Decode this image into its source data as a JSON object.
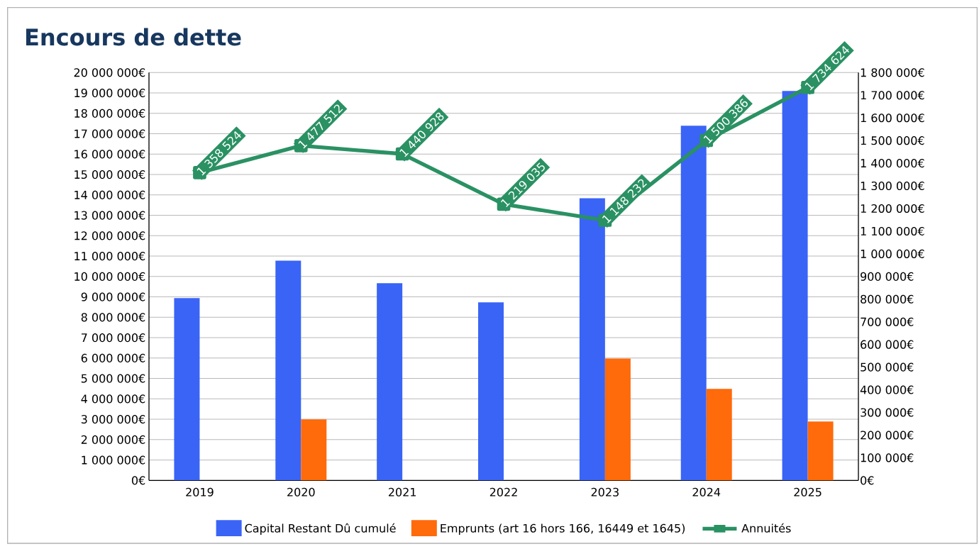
{
  "chart_data": {
    "type": "bar",
    "title": "Encours de dette",
    "categories": [
      "2019",
      "2020",
      "2021",
      "2022",
      "2023",
      "2024",
      "2025"
    ],
    "series": [
      {
        "name": "Capital Restant Dû cumulé",
        "color": "#3a64f5",
        "values": [
          8940000,
          10780000,
          9670000,
          8730000,
          13840000,
          17390000,
          19100000
        ]
      },
      {
        "name": "Emprunts (art 16 hors 166, 16449 et 1645)",
        "color": "#ff6a0a",
        "values": [
          null,
          2990000,
          null,
          null,
          5980000,
          4490000,
          2890000
        ]
      },
      {
        "name": "Annuités",
        "type": "line",
        "axis": "y2",
        "color": "#2a9163",
        "marker": "square",
        "values": [
          1358524,
          1477512,
          1440928,
          1219035,
          1148232,
          1500386,
          1734624
        ],
        "value_labels": [
          "1 358 524",
          "1 477 512",
          "1 440 928",
          "1 219 035",
          "1 148 232",
          "1 500 386",
          "1 734 624"
        ]
      }
    ],
    "ylim": [
      0,
      20000000
    ],
    "yticks": [
      {
        "value": 0,
        "label": "0€"
      },
      {
        "value": 1000000,
        "label": "1 000 000€"
      },
      {
        "value": 2000000,
        "label": "2 000 000€"
      },
      {
        "value": 3000000,
        "label": "3 000 000€"
      },
      {
        "value": 4000000,
        "label": "4 000 000€"
      },
      {
        "value": 5000000,
        "label": "5 000 000€"
      },
      {
        "value": 6000000,
        "label": "6 000 000€"
      },
      {
        "value": 7000000,
        "label": "7 000 000€"
      },
      {
        "value": 8000000,
        "label": "8 000 000€"
      },
      {
        "value": 9000000,
        "label": "9 000 000€"
      },
      {
        "value": 10000000,
        "label": "10 000 000€"
      },
      {
        "value": 11000000,
        "label": "11 000 000€"
      },
      {
        "value": 12000000,
        "label": "12 000 000€"
      },
      {
        "value": 13000000,
        "label": "13 000 000€"
      },
      {
        "value": 14000000,
        "label": "14 000 000€"
      },
      {
        "value": 15000000,
        "label": "15 000 000€"
      },
      {
        "value": 16000000,
        "label": "16 000 000€"
      },
      {
        "value": 17000000,
        "label": "17 000 000€"
      },
      {
        "value": 18000000,
        "label": "18 000 000€"
      },
      {
        "value": 19000000,
        "label": "19 000 000€"
      },
      {
        "value": 20000000,
        "label": "20 000 000€"
      }
    ],
    "y2lim": [
      0,
      1800000
    ],
    "y2ticks": [
      {
        "value": 0,
        "label": "0€"
      },
      {
        "value": 100000,
        "label": "100 000€"
      },
      {
        "value": 200000,
        "label": "200 000€"
      },
      {
        "value": 300000,
        "label": "300 000€"
      },
      {
        "value": 400000,
        "label": "400 000€"
      },
      {
        "value": 500000,
        "label": "500 000€"
      },
      {
        "value": 600000,
        "label": "600 000€"
      },
      {
        "value": 700000,
        "label": "700 000€"
      },
      {
        "value": 800000,
        "label": "800 000€"
      },
      {
        "value": 900000,
        "label": "900 000€"
      },
      {
        "value": 1000000,
        "label": "1 000 000€"
      },
      {
        "value": 1100000,
        "label": "1 100 000€"
      },
      {
        "value": 1200000,
        "label": "1 200 000€"
      },
      {
        "value": 1300000,
        "label": "1 300 000€"
      },
      {
        "value": 1400000,
        "label": "1 400 000€"
      },
      {
        "value": 1500000,
        "label": "1 500 000€"
      },
      {
        "value": 1600000,
        "label": "1 600 000€"
      },
      {
        "value": 1700000,
        "label": "1 700 000€"
      },
      {
        "value": 1800000,
        "label": "1 800 000€"
      }
    ],
    "grid": "y",
    "legend": "bottom"
  }
}
